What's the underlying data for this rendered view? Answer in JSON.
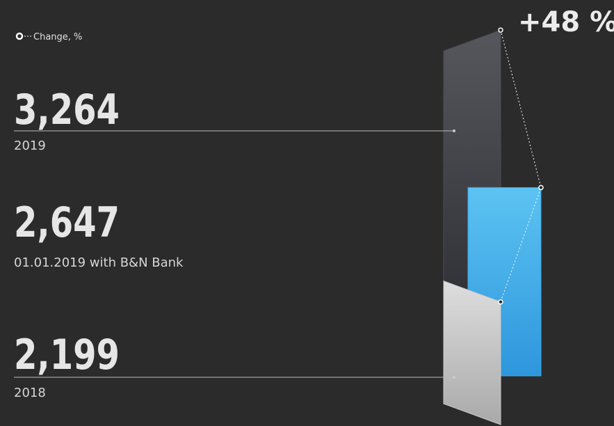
{
  "chart_data": {
    "type": "bar",
    "legend": "Change, %",
    "change_label": "+48 %",
    "categories": [
      "2019",
      "01.01.2019 with B&N Bank",
      "2018"
    ],
    "values": [
      3264,
      2647,
      2199
    ],
    "value_labels": [
      "3,264",
      "2,647",
      "2,199"
    ],
    "colors": [
      "#4a4c52",
      "#3aa8e8",
      "#c9c9c9"
    ],
    "ylim": [
      1800,
      3300
    ]
  }
}
